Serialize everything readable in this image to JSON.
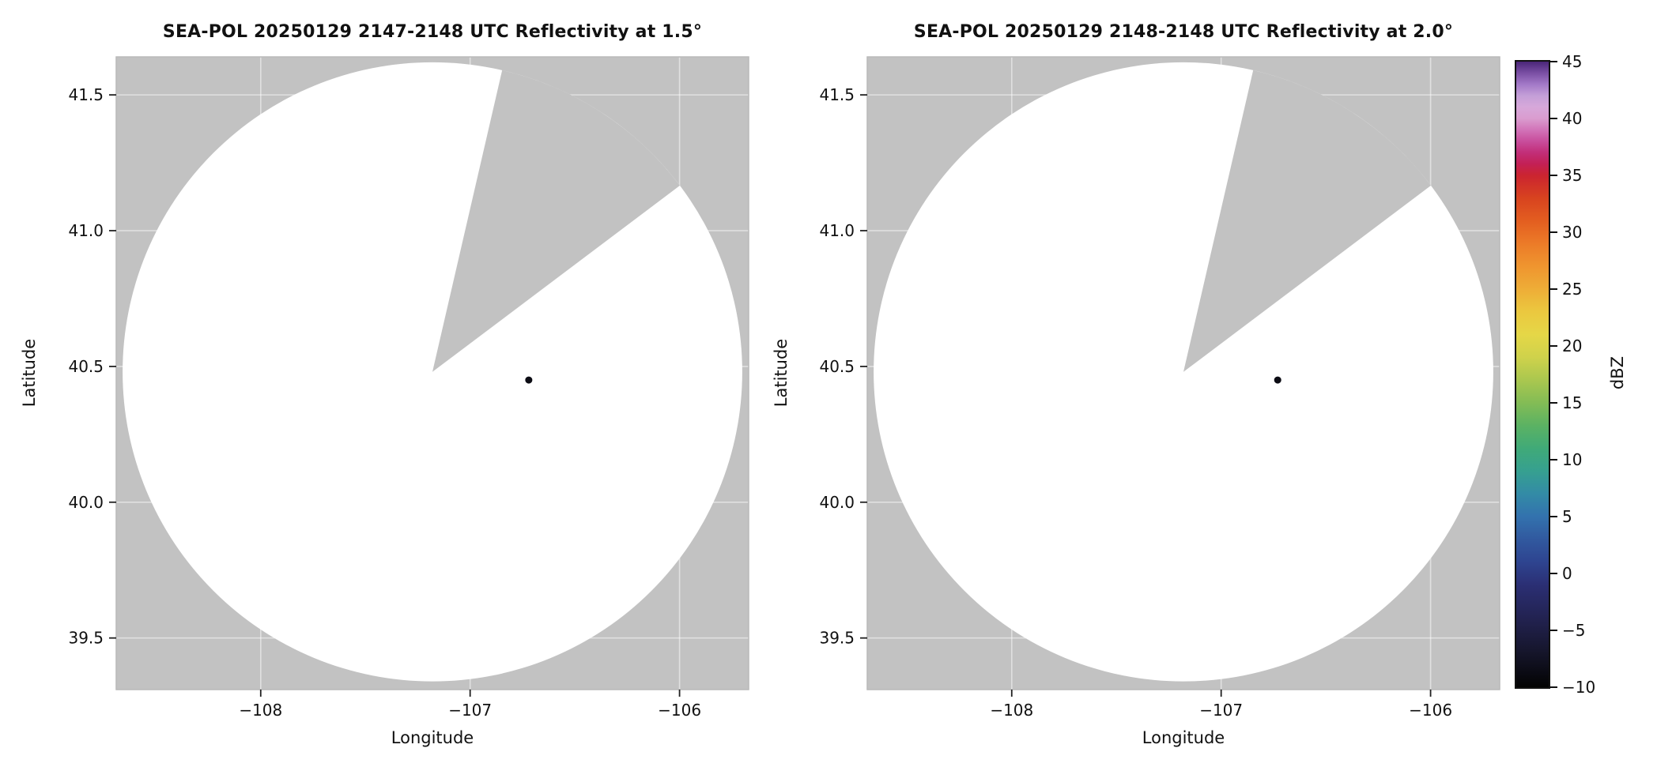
{
  "figure": {
    "background": "#ffffff"
  },
  "chart_data": [
    {
      "type": "heatmap",
      "title": "SEA-POL 20250129 2147-2148 UTC Reflectivity at 1.5°",
      "xlabel": "Longitude",
      "ylabel": "Latitude",
      "xlim": [
        -108.69,
        -105.67
      ],
      "ylim": [
        39.31,
        41.64
      ],
      "xtick_values": [
        -108,
        -107,
        -106
      ],
      "xtick_labels": [
        "−108",
        "−107",
        "−106"
      ],
      "ytick_values": [
        39.5,
        40.0,
        40.5,
        41.0,
        41.5
      ],
      "ytick_labels": [
        "39.5",
        "40.0",
        "40.5",
        "41.0",
        "41.5"
      ],
      "grid": true,
      "grid_color": "#ffffff",
      "no_data_color": "#c2c2c2",
      "scan_area_color": "#ffffff",
      "frame_color": "#b9b9b9",
      "radar_coverage": {
        "center_lon": -107.18,
        "center_lat": 40.48,
        "radius_deg_lat": 1.14,
        "missing_sector_azimuth_start_deg": 13,
        "missing_sector_azimuth_end_deg": 53
      },
      "echoes": [
        {
          "lon": -106.72,
          "lat": 40.45,
          "dbz": -8,
          "color": "#0c0c14"
        }
      ]
    },
    {
      "type": "heatmap",
      "title": "SEA-POL 20250129 2148-2148 UTC Reflectivity at 2.0°",
      "xlabel": "Longitude",
      "ylabel": "Latitude",
      "xlim": [
        -108.69,
        -105.67
      ],
      "ylim": [
        39.31,
        41.64
      ],
      "xtick_values": [
        -108,
        -107,
        -106
      ],
      "xtick_labels": [
        "−108",
        "−107",
        "−106"
      ],
      "ytick_values": [
        39.5,
        40.0,
        40.5,
        41.0,
        41.5
      ],
      "ytick_labels": [
        "39.5",
        "40.0",
        "40.5",
        "41.0",
        "41.5"
      ],
      "grid": true,
      "grid_color": "#ffffff",
      "no_data_color": "#c2c2c2",
      "scan_area_color": "#ffffff",
      "frame_color": "#b9b9b9",
      "radar_coverage": {
        "center_lon": -107.18,
        "center_lat": 40.48,
        "radius_deg_lat": 1.14,
        "missing_sector_azimuth_start_deg": 13,
        "missing_sector_azimuth_end_deg": 53
      },
      "echoes": [
        {
          "lon": -106.73,
          "lat": 40.45,
          "dbz": -8,
          "color": "#0c0c14"
        }
      ]
    }
  ],
  "colorbar": {
    "label": "dBZ",
    "min": -10,
    "max": 45,
    "tick_values": [
      45,
      40,
      35,
      30,
      25,
      20,
      15,
      10,
      5,
      0,
      -5,
      -10
    ],
    "tick_labels": [
      "45",
      "40",
      "35",
      "30",
      "25",
      "20",
      "15",
      "10",
      "5",
      "0",
      "−5",
      "−10"
    ],
    "stops": [
      {
        "v": -10,
        "c": "#030303"
      },
      {
        "v": -7,
        "c": "#15152a"
      },
      {
        "v": -4,
        "c": "#222250"
      },
      {
        "v": -1,
        "c": "#2b2f74"
      },
      {
        "v": 1,
        "c": "#2e4490"
      },
      {
        "v": 3,
        "c": "#31599f"
      },
      {
        "v": 5,
        "c": "#3372ae"
      },
      {
        "v": 7,
        "c": "#338ba6"
      },
      {
        "v": 9,
        "c": "#36a090"
      },
      {
        "v": 11,
        "c": "#40aa78"
      },
      {
        "v": 13,
        "c": "#5bb263"
      },
      {
        "v": 15,
        "c": "#83bc55"
      },
      {
        "v": 17,
        "c": "#aac74f"
      },
      {
        "v": 19,
        "c": "#cfd24b"
      },
      {
        "v": 21,
        "c": "#e5d747"
      },
      {
        "v": 23,
        "c": "#ebc83f"
      },
      {
        "v": 25,
        "c": "#eead37"
      },
      {
        "v": 27,
        "c": "#ef952f"
      },
      {
        "v": 29,
        "c": "#ec7b28"
      },
      {
        "v": 31,
        "c": "#e35e20"
      },
      {
        "v": 33,
        "c": "#d8431f"
      },
      {
        "v": 35,
        "c": "#cb2430"
      },
      {
        "v": 36,
        "c": "#c32055"
      },
      {
        "v": 37,
        "c": "#c22e78"
      },
      {
        "v": 38,
        "c": "#c84d9c"
      },
      {
        "v": 39,
        "c": "#d273b8"
      },
      {
        "v": 40,
        "c": "#da9ccf"
      },
      {
        "v": 41,
        "c": "#d7a8da"
      },
      {
        "v": 42,
        "c": "#c49fd8"
      },
      {
        "v": 43,
        "c": "#a379c8"
      },
      {
        "v": 44,
        "c": "#7a4fa4"
      },
      {
        "v": 45,
        "c": "#4a2678"
      }
    ]
  }
}
